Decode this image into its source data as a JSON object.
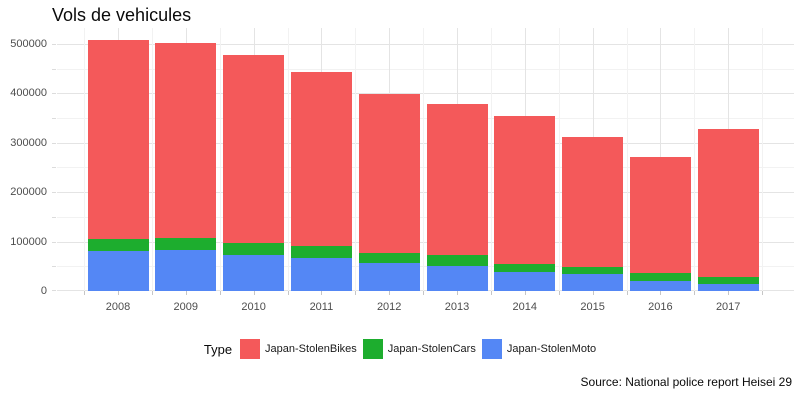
{
  "title": "Vols de vehicules",
  "caption": "Source: National police report Heisei 29",
  "legend": {
    "title": "Type",
    "items": [
      {
        "label": "Japan-StolenBikes",
        "color": "#f4595a"
      },
      {
        "label": "Japan-StolenCars",
        "color": "#1dad2e"
      },
      {
        "label": "Japan-StolenMoto",
        "color": "#5487f5"
      }
    ]
  },
  "axes": {
    "y_tick_labels": [
      "0",
      "100000",
      "200000",
      "300000",
      "400000",
      "500000"
    ],
    "y_tick_values": [
      0,
      100000,
      200000,
      300000,
      400000,
      500000
    ],
    "y_minor_step": 50000,
    "x_tick_labels": [
      "2008",
      "2009",
      "2010",
      "2011",
      "2012",
      "2013",
      "2014",
      "2015",
      "2016",
      "2017"
    ]
  },
  "chart_data": {
    "type": "bar",
    "stacked": true,
    "title": "Vols de vehicules",
    "xlabel": "",
    "ylabel": "",
    "ylim": [
      0,
      532000
    ],
    "grid": true,
    "legend_position": "bottom",
    "categories": [
      2008,
      2009,
      2010,
      2011,
      2012,
      2013,
      2014,
      2015,
      2016,
      2017
    ],
    "series": [
      {
        "name": "Japan-StolenBikes",
        "color": "#f4595a",
        "values": [
          401500,
          395000,
          379000,
          351500,
          320500,
          305500,
          298000,
          263000,
          236500,
          299000
        ]
      },
      {
        "name": "Japan-StolenCars",
        "color": "#1dad2e",
        "values": [
          25500,
          24500,
          24000,
          25000,
          20500,
          22500,
          17000,
          14500,
          14500,
          13000
        ]
      },
      {
        "name": "Japan-StolenMoto",
        "color": "#5487f5",
        "values": [
          80500,
          82500,
          73500,
          67000,
          57000,
          50000,
          38000,
          33500,
          21000,
          15000
        ]
      }
    ],
    "stack_bottom_to_top": [
      "Japan-StolenMoto",
      "Japan-StolenCars",
      "Japan-StolenBikes"
    ],
    "totals": [
      507500,
      502000,
      476500,
      443500,
      398000,
      378000,
      353000,
      311000,
      272000,
      327000
    ]
  }
}
